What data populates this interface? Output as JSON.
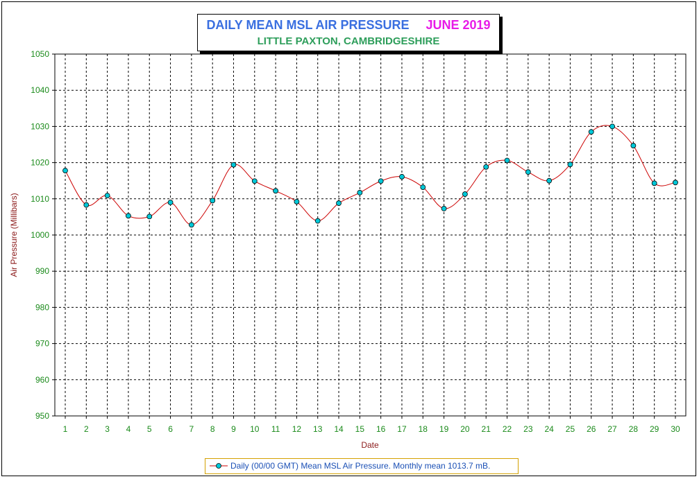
{
  "title": {
    "main": "DAILY MEAN MSL AIR PRESSURE",
    "month": "JUNE 2019",
    "subtitle": "LITTLE PAXTON, CAMBRIDGESHIRE"
  },
  "legend": {
    "label": "Daily (00/00 GMT) Mean MSL Air Pressure. Monthly mean 1013.7 mB."
  },
  "colors": {
    "line": "#cc0000",
    "marker_fill": "#00c8d8",
    "tick_text": "#1a8a1a",
    "axis_label": "#8b1a1a"
  },
  "chart_data": {
    "type": "line",
    "xlabel": "Date",
    "ylabel": "Air Pressure (Millibars)",
    "ylim": [
      950,
      1050
    ],
    "yticks": [
      950,
      960,
      970,
      980,
      990,
      1000,
      1010,
      1020,
      1030,
      1040,
      1050
    ],
    "grid": true,
    "legend_position": "bottom",
    "categories": [
      "1",
      "2",
      "3",
      "4",
      "5",
      "6",
      "7",
      "8",
      "9",
      "10",
      "11",
      "12",
      "13",
      "14",
      "15",
      "16",
      "17",
      "18",
      "19",
      "20",
      "21",
      "22",
      "23",
      "24",
      "25",
      "26",
      "27",
      "28",
      "29",
      "30"
    ],
    "series": [
      {
        "name": "Daily (00/00 GMT) Mean MSL Air Pressure. Monthly mean 1013.7 mB.",
        "values": [
          1017.8,
          1008.3,
          1010.9,
          1005.3,
          1005.1,
          1009.0,
          1002.8,
          1009.5,
          1019.4,
          1014.9,
          1012.2,
          1009.2,
          1003.9,
          1008.8,
          1011.7,
          1014.9,
          1016.1,
          1013.2,
          1007.3,
          1011.3,
          1018.8,
          1020.6,
          1017.4,
          1015.0,
          1019.5,
          1028.5,
          1030.0,
          1024.7,
          1014.3,
          1014.5
        ]
      }
    ]
  }
}
